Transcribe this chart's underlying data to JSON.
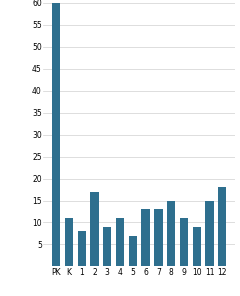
{
  "categories": [
    "PK",
    "K",
    "1",
    "2",
    "3",
    "4",
    "5",
    "6",
    "7",
    "8",
    "9",
    "10",
    "11",
    "12"
  ],
  "values": [
    60,
    11,
    8,
    17,
    9,
    11,
    7,
    13,
    13,
    15,
    11,
    9,
    15,
    18
  ],
  "bar_color": "#2e6f8e",
  "ylim": [
    0,
    60
  ],
  "yticks": [
    5,
    10,
    15,
    20,
    25,
    30,
    35,
    40,
    45,
    50,
    55,
    60
  ],
  "background_color": "#ffffff",
  "tick_fontsize": 5.5,
  "bar_width": 0.65,
  "grid_color": "#d0d0d0",
  "grid_linewidth": 0.5
}
